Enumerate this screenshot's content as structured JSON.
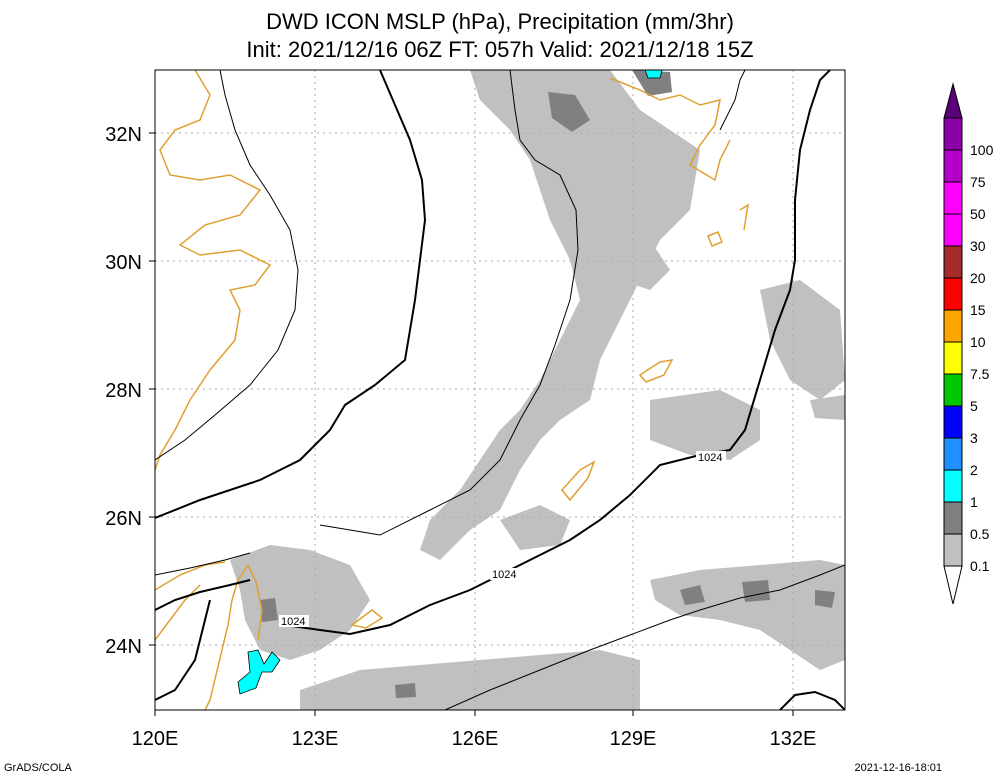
{
  "title": {
    "line1": "DWD ICON MSLP (hPa), Precipitation (mm/3hr)",
    "line2": "Init: 2021/12/16 06Z  FT: 057h  Valid: 2021/12/18 15Z"
  },
  "axes": {
    "x_ticks": [
      "120E",
      "123E",
      "126E",
      "129E",
      "132E"
    ],
    "y_ticks": [
      "32N",
      "30N",
      "28N",
      "26N",
      "24N"
    ],
    "lon_range": [
      120,
      133
    ],
    "lat_range": [
      23,
      33
    ]
  },
  "isobars": {
    "labels": [
      "1024",
      "1024",
      "1024"
    ]
  },
  "colorbar": {
    "labels": [
      "100",
      "75",
      "50",
      "30",
      "20",
      "15",
      "10",
      "7.5",
      "5",
      "3",
      "2",
      "1",
      "0.5",
      "0.1"
    ],
    "colors": [
      "#8c00a8",
      "#b400c8",
      "#ff00ff",
      "#ff00ff",
      "#a52a2a",
      "#ff0000",
      "#ffa500",
      "#ffff00",
      "#00c800",
      "#0000ff",
      "#1e90ff",
      "#00ffff",
      "#808080",
      "#c0c0c0"
    ],
    "top_color": "#5a0078"
  },
  "colors": {
    "coast": "#e0a030",
    "precip_light": "#c0c0c0",
    "precip_mid": "#808080",
    "precip_heavy": "#00ffff",
    "grid": "#aaaaaa"
  },
  "footer": {
    "left": "GrADS/COLA",
    "right": "2021-12-16-18:01"
  }
}
